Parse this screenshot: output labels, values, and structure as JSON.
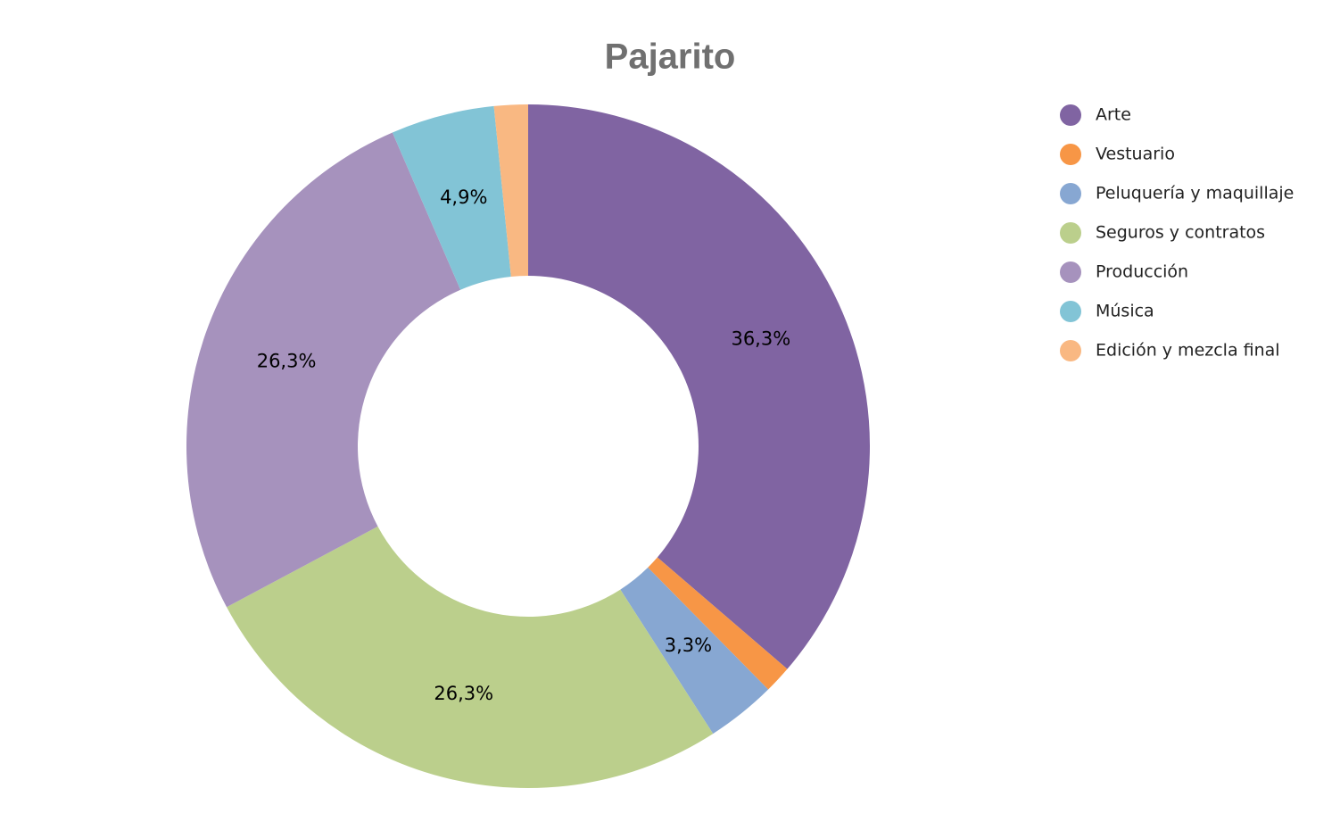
{
  "chart_data": {
    "type": "donut",
    "title": "Pajarito",
    "categories": [
      "Arte",
      "Vestuario",
      "Peluquería y maquillaje",
      "Seguros y contratos",
      "Producción",
      "Música",
      "Edición y mezcla final"
    ],
    "values": [
      36.3,
      1.3,
      3.3,
      26.3,
      26.3,
      4.9,
      1.6
    ],
    "value_labels": [
      "36,3%",
      null,
      "3,3%",
      "26,3%",
      "26,3%",
      "4,9%",
      null
    ],
    "colors": [
      "#8064a2",
      "#f79646",
      "#87a7d2",
      "#bbcf8c",
      "#a692bd",
      "#82c4d6",
      "#f9b882"
    ],
    "legend": "right"
  }
}
